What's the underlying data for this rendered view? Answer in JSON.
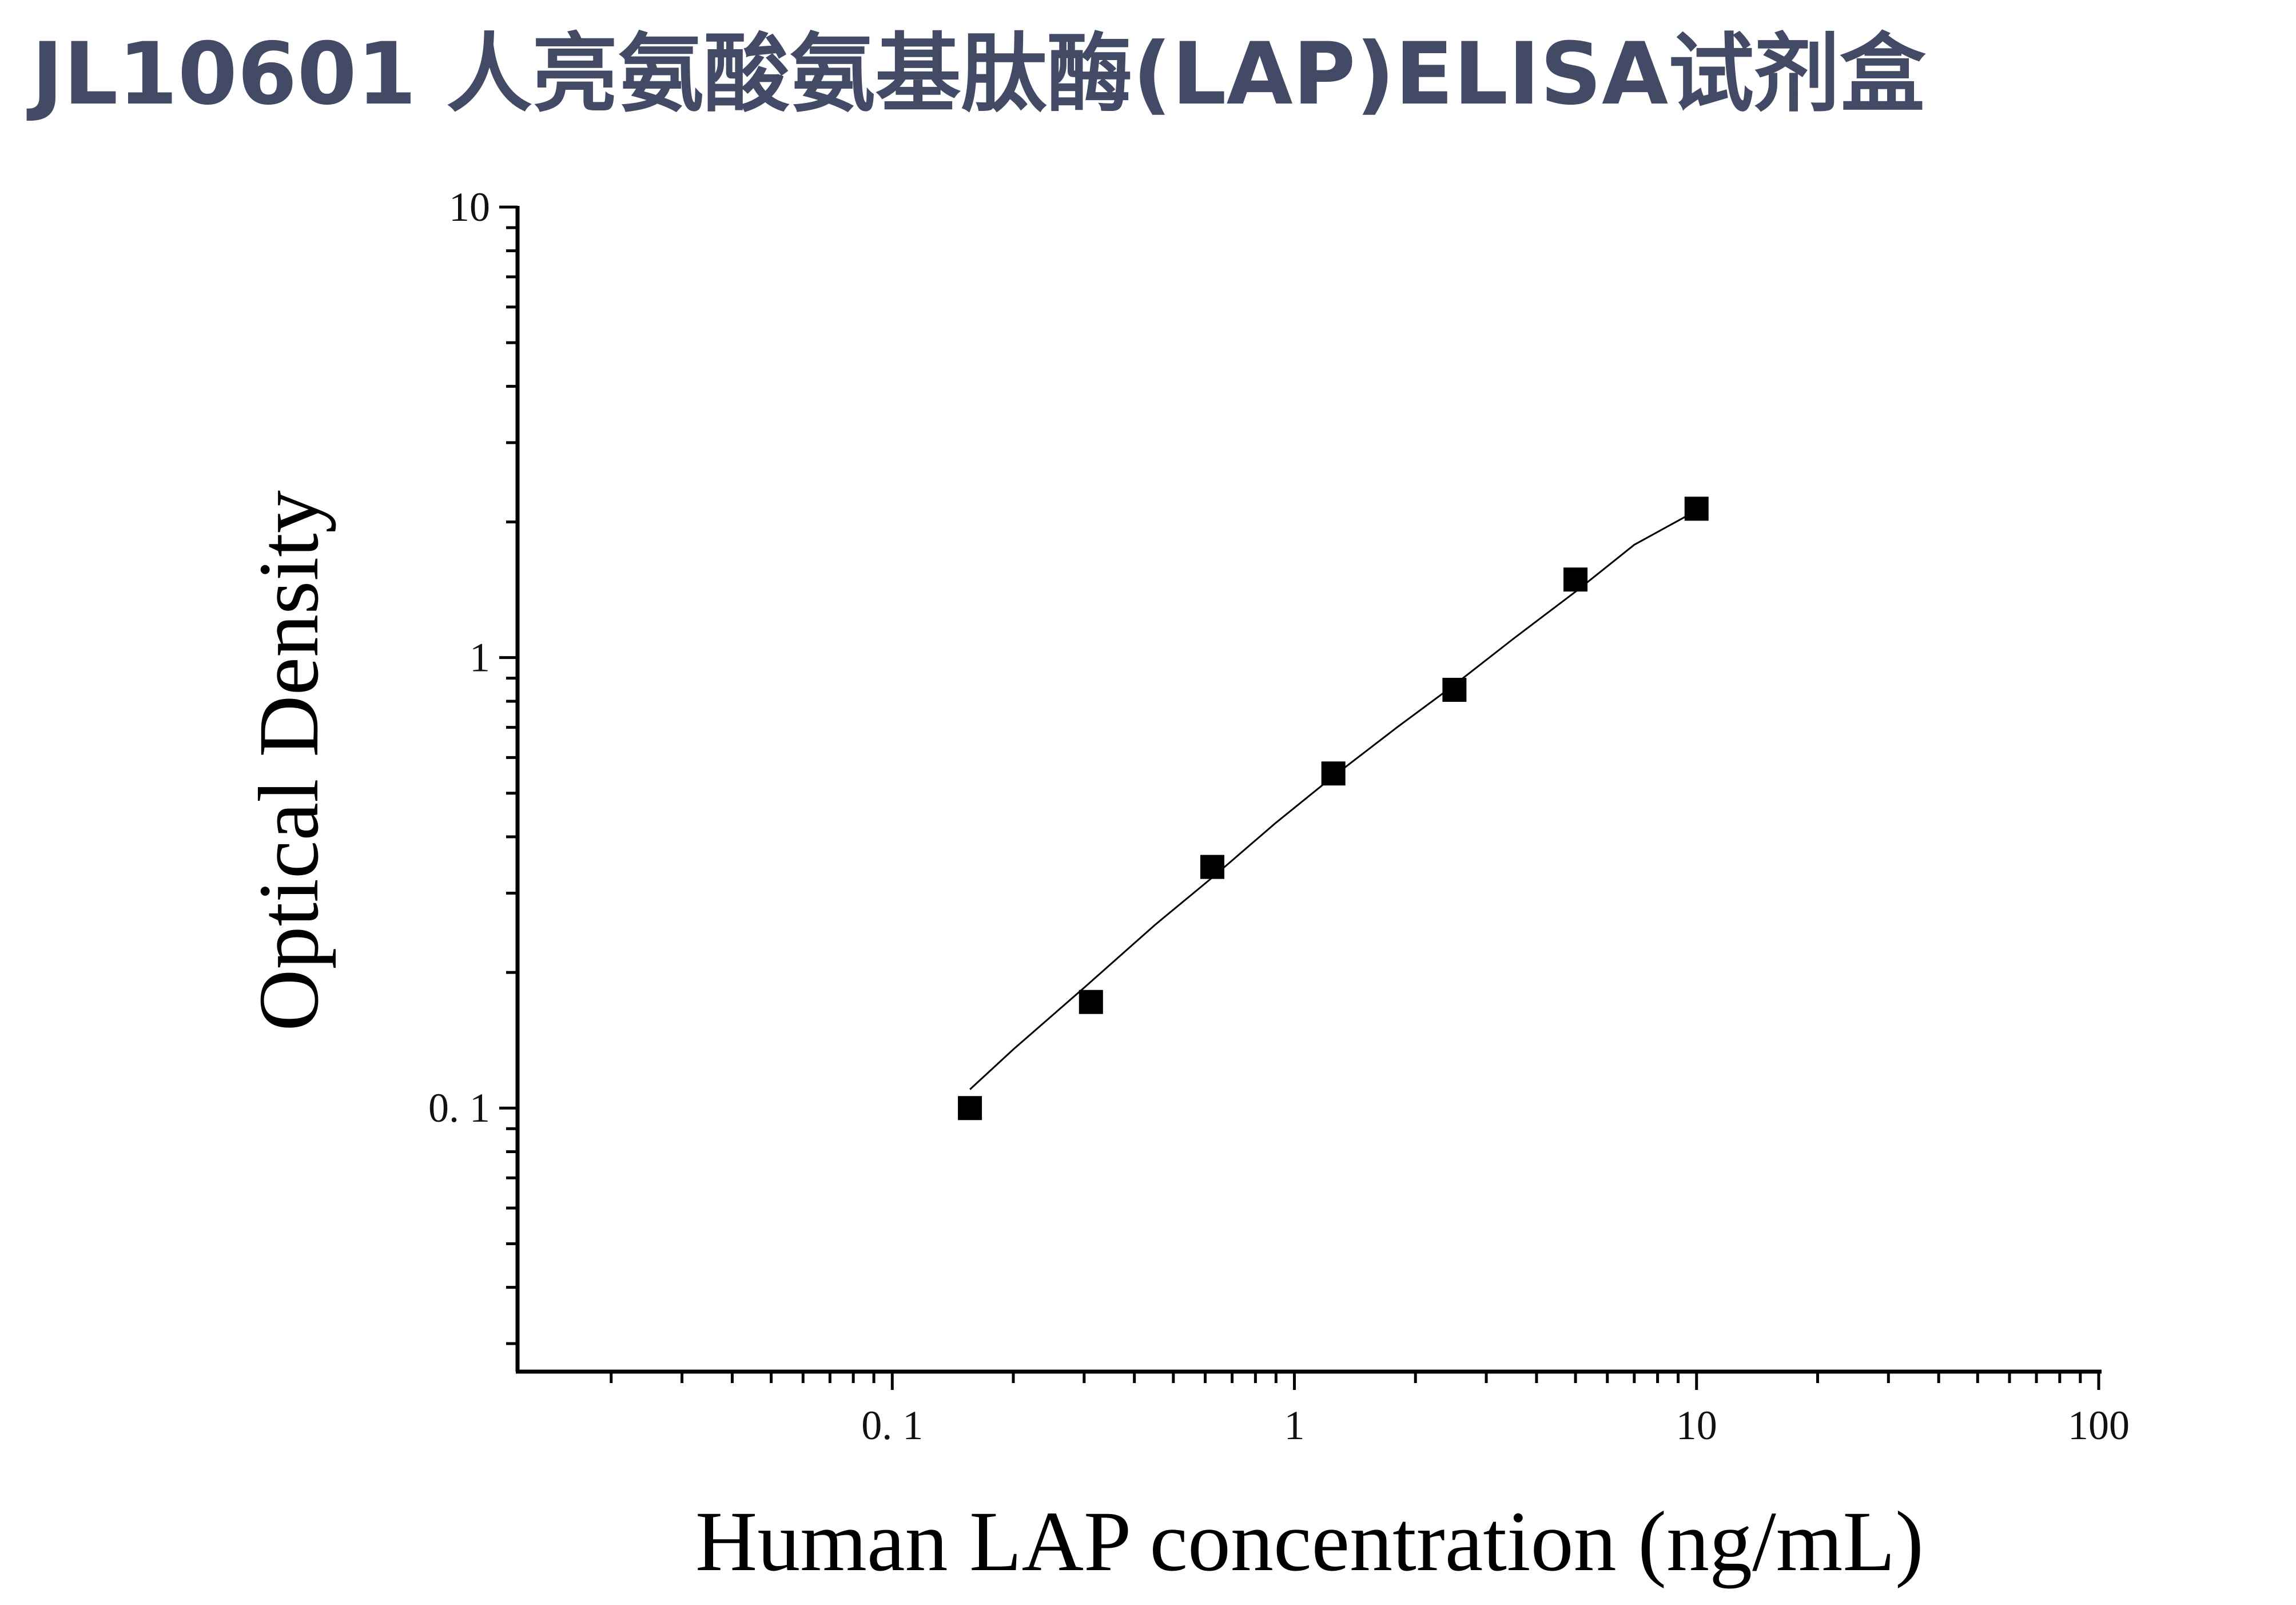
{
  "title": "JL10601 人亮氨酸氨基肽酶(LAP)ELISA试剂盒",
  "chart_data": {
    "type": "scatter",
    "title": "",
    "xlabel": "Human LAP concentration (ng/mL)",
    "ylabel": "Optical Density",
    "x_scale": "log",
    "y_scale": "log",
    "xlim": [
      0.0117,
      100
    ],
    "ylim": [
      0.026,
      10
    ],
    "x_ticks": [
      0.1,
      1,
      10,
      100
    ],
    "x_tick_labels": [
      "0. 1",
      "1",
      "10",
      "100"
    ],
    "y_ticks": [
      0.1,
      1,
      10
    ],
    "y_tick_labels": [
      "0. 1",
      "1",
      "10"
    ],
    "grid": false,
    "legend": "none",
    "marker_color": "#000000",
    "line_color": "#000000",
    "series": [
      {
        "marker": "square",
        "x": [
          0.156,
          0.312,
          0.625,
          1.25,
          2.5,
          5,
          10
        ],
        "y": [
          0.1,
          0.172,
          0.343,
          0.553,
          0.848,
          1.49,
          2.14
        ]
      }
    ],
    "fit_curve": {
      "x": [
        0.156,
        0.2,
        0.3,
        0.45,
        0.625,
        0.9,
        1.25,
        1.8,
        2.5,
        3.5,
        5,
        7,
        10
      ],
      "y": [
        0.11,
        0.135,
        0.185,
        0.255,
        0.325,
        0.43,
        0.545,
        0.7,
        0.87,
        1.1,
        1.4,
        1.78,
        2.12
      ]
    }
  }
}
